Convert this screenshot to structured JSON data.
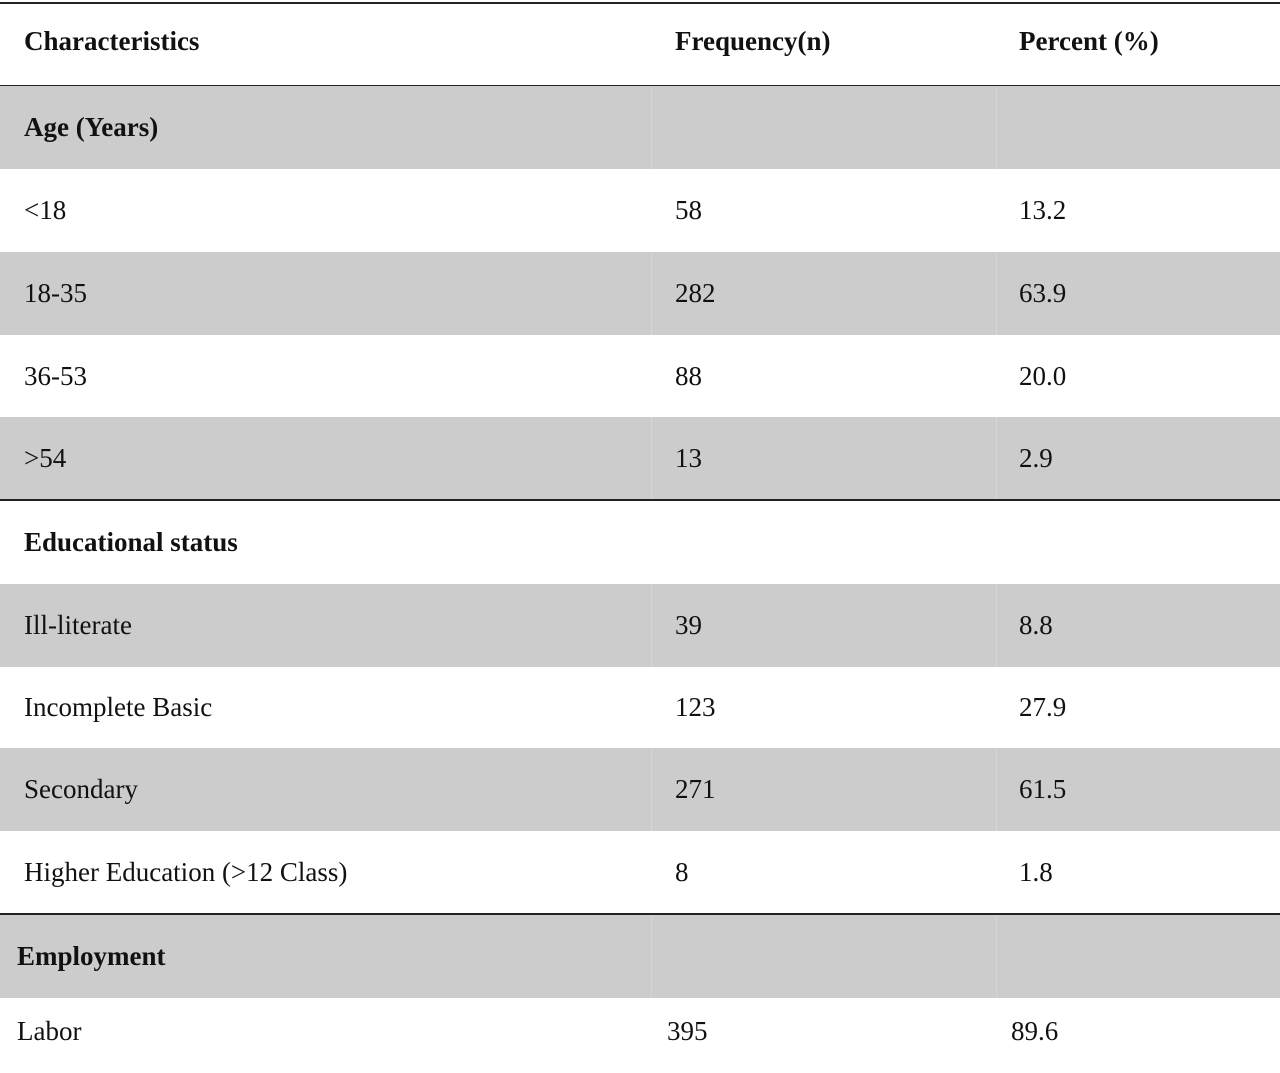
{
  "table": {
    "header": {
      "characteristics": "Characteristics",
      "frequency": "Frequency(n)",
      "percent": "Percent (%)"
    },
    "rows": [
      {
        "label": "Age (Years)",
        "n": "",
        "pct": ""
      },
      {
        "label": "<18",
        "n": "58",
        "pct": "13.2"
      },
      {
        "label": "18-35",
        "n": "282",
        "pct": "63.9"
      },
      {
        "label": "36-53",
        "n": "88",
        "pct": "20.0"
      },
      {
        "label": ">54",
        "n": "13",
        "pct": "2.9"
      },
      {
        "label": "Educational status",
        "n": "",
        "pct": ""
      },
      {
        "label": "Ill-literate",
        "n": "39",
        "pct": "8.8"
      },
      {
        "label": "Incomplete Basic",
        "n": "123",
        "pct": "27.9"
      },
      {
        "label": "Secondary",
        "n": "271",
        "pct": "61.5"
      },
      {
        "label": "Higher Education (>12 Class)",
        "n": "8",
        "pct": "1.8"
      },
      {
        "label": "Employment",
        "n": "",
        "pct": ""
      },
      {
        "label": "Labor",
        "n": "395",
        "pct": "89.6"
      }
    ]
  }
}
